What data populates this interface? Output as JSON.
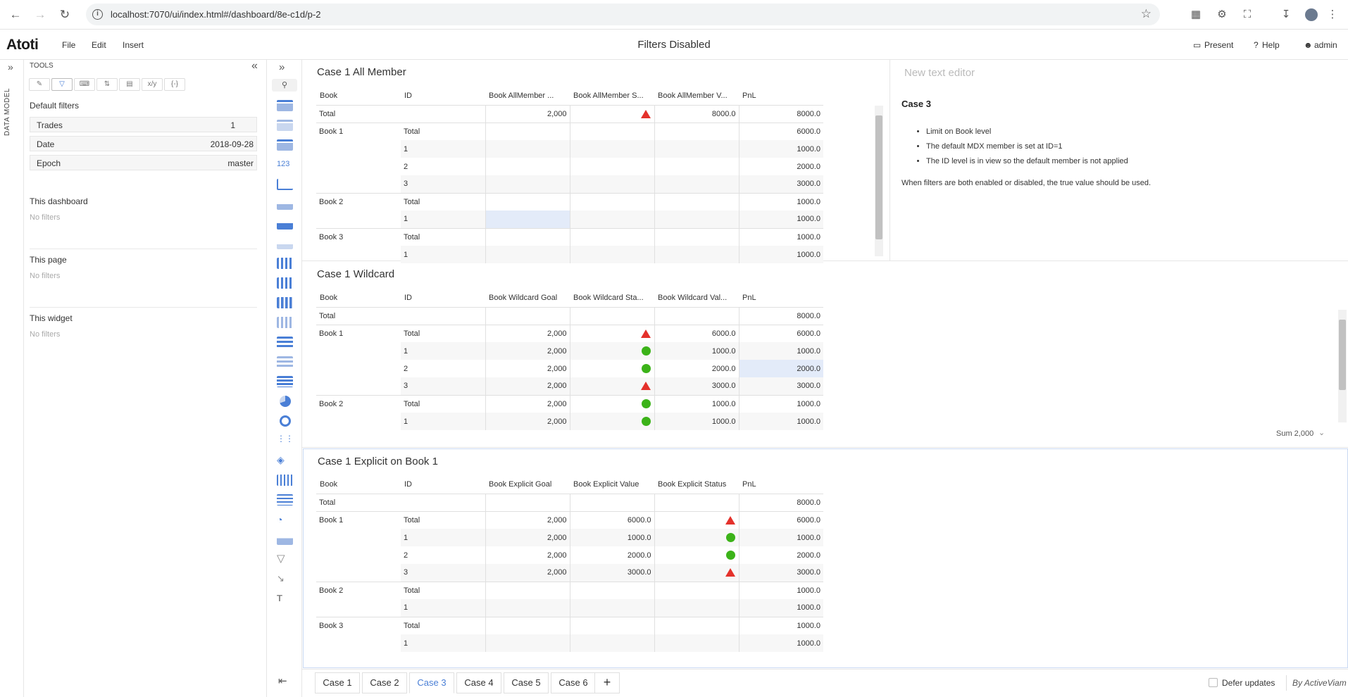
{
  "browser": {
    "url": "localhost:7070/ui/index.html#/dashboard/8e-c1d/p-2"
  },
  "app": {
    "logo": "Atoti",
    "menu": [
      "File",
      "Edit",
      "Insert"
    ],
    "title": "Filters Disabled",
    "present": "Present",
    "help": "Help",
    "user": "admin"
  },
  "sidebar": {
    "data_model_label": "DATA MODEL",
    "tools_label": "TOOLS",
    "default_filters_label": "Default filters",
    "default_filters": [
      {
        "key": "Trades",
        "value": "1"
      },
      {
        "key": "Date",
        "value": "2018-09-28"
      },
      {
        "key": "Epoch",
        "value": "master"
      }
    ],
    "this_dashboard": "This dashboard",
    "this_page": "This page",
    "this_widget": "This widget",
    "no_filters": "No filters"
  },
  "widget1": {
    "title": "Case 1 All Member",
    "headers": [
      "Book",
      "ID",
      "Book AllMember ...",
      "Book AllMember S...",
      "Book AllMember V...",
      "PnL"
    ],
    "rows": [
      {
        "book": "Total",
        "id": "",
        "goal": "2,000",
        "status": "triangle",
        "val": "8000.0",
        "pnl": "8000.0"
      },
      {
        "book": "Book 1",
        "id": "Total",
        "goal": "",
        "status": "",
        "val": "",
        "pnl": "6000.0"
      },
      {
        "book": "",
        "id": "1",
        "goal": "",
        "status": "",
        "val": "",
        "pnl": "1000.0"
      },
      {
        "book": "",
        "id": "2",
        "goal": "",
        "status": "",
        "val": "",
        "pnl": "2000.0"
      },
      {
        "book": "",
        "id": "3",
        "goal": "",
        "status": "",
        "val": "",
        "pnl": "3000.0"
      },
      {
        "book": "Book 2",
        "id": "Total",
        "goal": "",
        "status": "",
        "val": "",
        "pnl": "1000.0"
      },
      {
        "book": "",
        "id": "1",
        "goal": "",
        "status": "",
        "val": "",
        "pnl": "1000.0"
      },
      {
        "book": "Book 3",
        "id": "Total",
        "goal": "",
        "status": "",
        "val": "",
        "pnl": "1000.0"
      },
      {
        "book": "",
        "id": "1",
        "goal": "",
        "status": "",
        "val": "",
        "pnl": "1000.0"
      }
    ]
  },
  "text_editor": {
    "placeholder": "New text editor",
    "heading": "Case 3",
    "bullets": [
      "Limit on Book level",
      "The default MDX member is set at ID=1",
      "The ID level is in view so the default member is not applied"
    ],
    "footer": "When filters are both enabled or disabled, the true value should be used."
  },
  "widget2": {
    "title": "Case 1 Wildcard",
    "headers": [
      "Book",
      "ID",
      "Book Wildcard Goal",
      "Book Wildcard Sta...",
      "Book Wildcard Val...",
      "PnL"
    ],
    "rows": [
      {
        "book": "Total",
        "id": "",
        "goal": "",
        "status": "",
        "val": "",
        "pnl": "8000.0"
      },
      {
        "book": "Book 1",
        "id": "Total",
        "goal": "2,000",
        "status": "triangle",
        "val": "6000.0",
        "pnl": "6000.0"
      },
      {
        "book": "",
        "id": "1",
        "goal": "2,000",
        "status": "dot",
        "val": "1000.0",
        "pnl": "1000.0"
      },
      {
        "book": "",
        "id": "2",
        "goal": "2,000",
        "status": "dot",
        "val": "2000.0",
        "pnl": "2000.0"
      },
      {
        "book": "",
        "id": "3",
        "goal": "2,000",
        "status": "triangle",
        "val": "3000.0",
        "pnl": "3000.0"
      },
      {
        "book": "Book 2",
        "id": "Total",
        "goal": "2,000",
        "status": "dot",
        "val": "1000.0",
        "pnl": "1000.0"
      },
      {
        "book": "",
        "id": "1",
        "goal": "2,000",
        "status": "dot",
        "val": "1000.0",
        "pnl": "1000.0"
      }
    ],
    "sum_label": "Sum 2,000"
  },
  "widget3": {
    "title": "Case 1 Explicit on Book 1",
    "headers": [
      "Book",
      "ID",
      "Book Explicit Goal",
      "Book Explicit Value",
      "Book Explicit Status",
      "PnL"
    ],
    "rows": [
      {
        "book": "Total",
        "id": "",
        "goal": "",
        "val": "",
        "status": "",
        "pnl": "8000.0"
      },
      {
        "book": "Book 1",
        "id": "Total",
        "goal": "2,000",
        "val": "6000.0",
        "status": "triangle",
        "pnl": "6000.0"
      },
      {
        "book": "",
        "id": "1",
        "goal": "2,000",
        "val": "1000.0",
        "status": "dot",
        "pnl": "1000.0"
      },
      {
        "book": "",
        "id": "2",
        "goal": "2,000",
        "val": "2000.0",
        "status": "dot",
        "pnl": "2000.0"
      },
      {
        "book": "",
        "id": "3",
        "goal": "2,000",
        "val": "3000.0",
        "status": "triangle",
        "pnl": "3000.0"
      },
      {
        "book": "Book 2",
        "id": "Total",
        "goal": "",
        "val": "",
        "status": "",
        "pnl": "1000.0"
      },
      {
        "book": "",
        "id": "1",
        "goal": "",
        "val": "",
        "status": "",
        "pnl": "1000.0"
      },
      {
        "book": "Book 3",
        "id": "Total",
        "goal": "",
        "val": "",
        "status": "",
        "pnl": "1000.0"
      },
      {
        "book": "",
        "id": "1",
        "goal": "",
        "val": "",
        "status": "",
        "pnl": "1000.0"
      }
    ]
  },
  "tabs": {
    "items": [
      "Case 1",
      "Case 2",
      "Case 3",
      "Case 4",
      "Case 5",
      "Case 6"
    ],
    "active_index": 2,
    "add": "+",
    "defer_updates": "Defer updates",
    "brand": "By ActiveViam"
  },
  "colors": {
    "accent": "#4a7fd6",
    "status_red": "#e4312b",
    "status_green": "#3cb319"
  }
}
